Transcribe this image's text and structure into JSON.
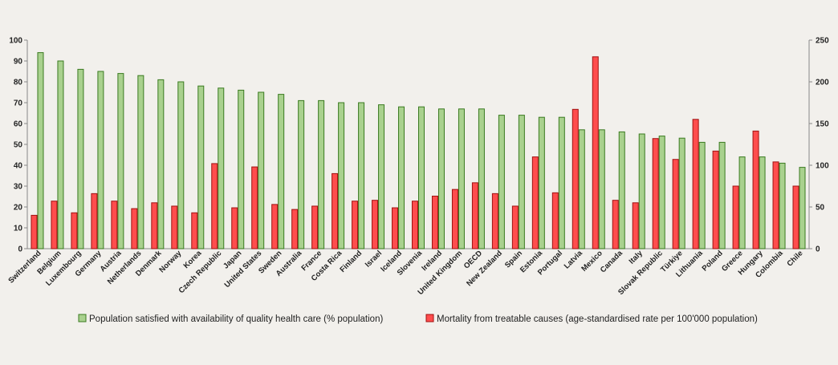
{
  "chart_data": {
    "type": "bar",
    "title": "",
    "xlabel": "",
    "categories": [
      "Switzerland",
      "Belgium",
      "Luxembourg",
      "Germany",
      "Austria",
      "Netherlands",
      "Denmark",
      "Norway",
      "Korea",
      "Czech Republic",
      "Japan",
      "United States",
      "Sweden",
      "Australia",
      "France",
      "Costa Rica",
      "Finland",
      "Israel",
      "Iceland",
      "Slovenia",
      "Ireland",
      "United Kingdom",
      "OECD",
      "New Zealand",
      "Spain",
      "Estonia",
      "Portugal",
      "Latvia",
      "Mexico",
      "Canada",
      "Italy",
      "Slovak Republic",
      "Türkiye",
      "Lithuania",
      "Poland",
      "Greece",
      "Hungary",
      "Colombia",
      "Chile"
    ],
    "series": [
      {
        "name": "Population satisfied with availability of quality health care (% population)",
        "axis": "left",
        "color": "#a9d18e",
        "values": [
          94,
          90,
          86,
          85,
          84,
          83,
          81,
          80,
          78,
          77,
          76,
          75,
          74,
          71,
          71,
          70,
          70,
          69,
          68,
          68,
          67,
          67,
          67,
          64,
          64,
          63,
          63,
          57,
          57,
          56,
          55,
          54,
          53,
          51,
          51,
          44,
          44,
          41,
          39
        ]
      },
      {
        "name": "Mortality from treatable causes (age-standardised rate per 100'000 population)",
        "axis": "right",
        "color": "#ff4d4d",
        "values": [
          40,
          57,
          43,
          66,
          57,
          48,
          55,
          51,
          43,
          102,
          49,
          98,
          53,
          47,
          51,
          90,
          57,
          58,
          49,
          57,
          63,
          71,
          79,
          66,
          51,
          110,
          67,
          167,
          230,
          58,
          55,
          132,
          107,
          155,
          117,
          75,
          141,
          104,
          75
        ]
      }
    ],
    "y_left": {
      "min": 0,
      "max": 100,
      "ticks": [
        0,
        10,
        20,
        30,
        40,
        50,
        60,
        70,
        80,
        90,
        100
      ]
    },
    "y_right": {
      "min": 0,
      "max": 250,
      "ticks": [
        0,
        50,
        100,
        150,
        200,
        250
      ]
    },
    "grid": false,
    "legend_position": "bottom"
  }
}
